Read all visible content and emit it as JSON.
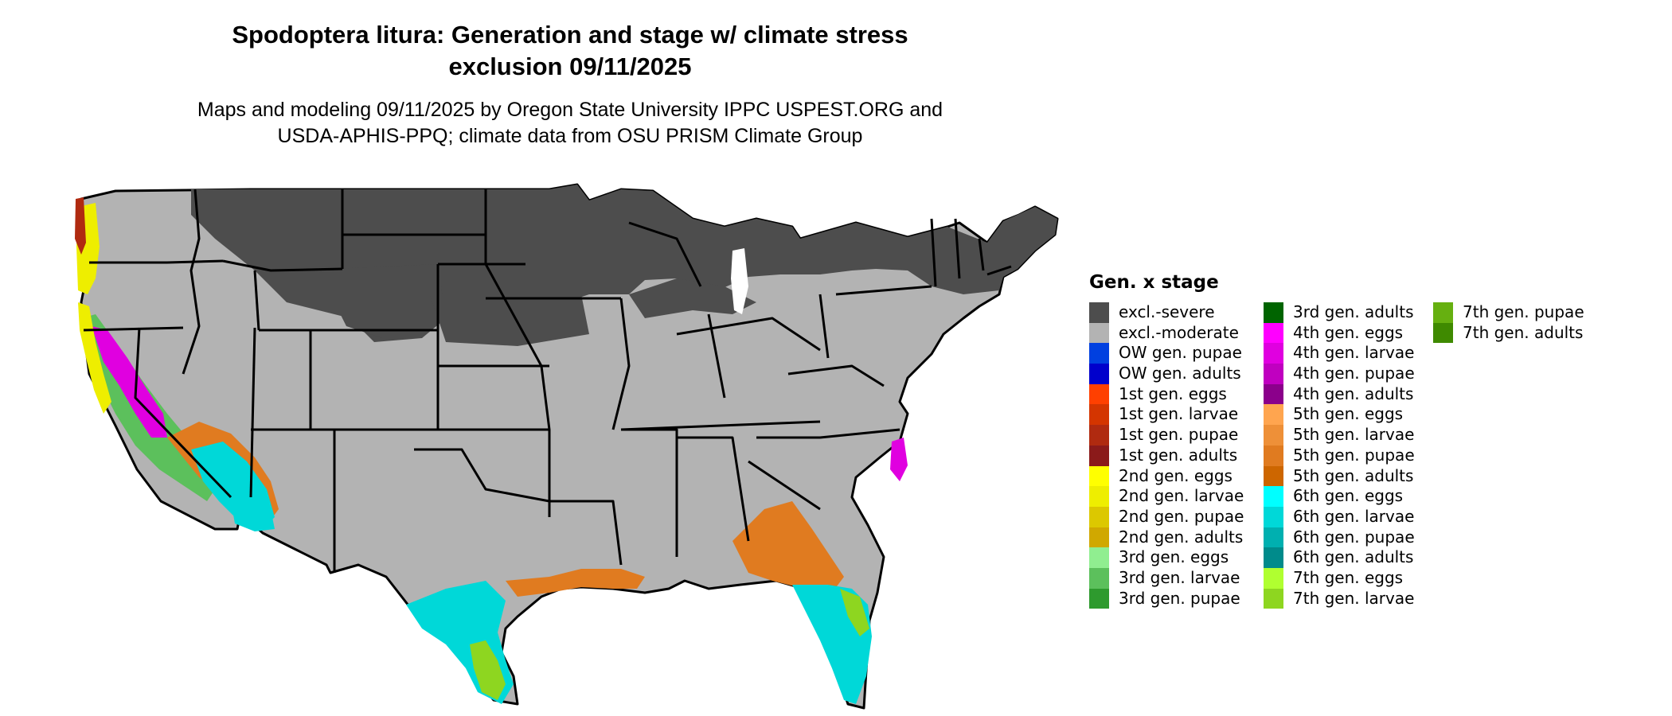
{
  "title_lines": [
    "Spodoptera litura: Generation and stage w/ climate stress",
    "exclusion 09/11/2025"
  ],
  "subtitle_lines": [
    "Maps and modeling 09/11/2025 by Oregon State University IPPC USPEST.ORG and",
    "USDA-APHIS-PPQ; climate data from OSU PRISM Climate Group"
  ],
  "legend": {
    "title": "Gen. x stage",
    "items": [
      {
        "label": "excl.-severe",
        "color": "#4d4d4d"
      },
      {
        "label": "excl.-moderate",
        "color": "#b3b3b3"
      },
      {
        "label": "OW gen. pupae",
        "color": "#0040e0"
      },
      {
        "label": "OW gen. adults",
        "color": "#0000cc"
      },
      {
        "label": "1st gen. eggs",
        "color": "#ff4000"
      },
      {
        "label": "1st gen. larvae",
        "color": "#d43500"
      },
      {
        "label": "1st gen. pupae",
        "color": "#b02a10"
      },
      {
        "label": "1st gen. adults",
        "color": "#8b1a1a"
      },
      {
        "label": "2nd gen. eggs",
        "color": "#ffff00"
      },
      {
        "label": "2nd gen. larvae",
        "color": "#eeee00"
      },
      {
        "label": "2nd gen. pupae",
        "color": "#dcc800"
      },
      {
        "label": "2nd gen. adults",
        "color": "#d0a800"
      },
      {
        "label": "3rd gen. eggs",
        "color": "#90ee90"
      },
      {
        "label": "3rd gen. larvae",
        "color": "#5cc05c"
      },
      {
        "label": "3rd gen. pupae",
        "color": "#2e9a2e"
      },
      {
        "label": "3rd gen. adults",
        "color": "#006400"
      },
      {
        "label": "4th gen. eggs",
        "color": "#ff00ff"
      },
      {
        "label": "4th gen. larvae",
        "color": "#e000e0"
      },
      {
        "label": "4th gen. pupae",
        "color": "#c000c0"
      },
      {
        "label": "4th gen. adults",
        "color": "#8b008b"
      },
      {
        "label": "5th gen. eggs",
        "color": "#ffa54f"
      },
      {
        "label": "5th gen. larvae",
        "color": "#ee9038"
      },
      {
        "label": "5th gen. pupae",
        "color": "#e07b20"
      },
      {
        "label": "5th gen. adults",
        "color": "#cd6600"
      },
      {
        "label": "6th gen. eggs",
        "color": "#00ffff"
      },
      {
        "label": "6th gen. larvae",
        "color": "#00d8d8"
      },
      {
        "label": "6th gen. pupae",
        "color": "#00b0b0"
      },
      {
        "label": "6th gen. adults",
        "color": "#008b8b"
      },
      {
        "label": "7th gen. eggs",
        "color": "#b0ff30"
      },
      {
        "label": "7th gen. larvae",
        "color": "#8ed620"
      },
      {
        "label": "7th gen. pupae",
        "color": "#66b010"
      },
      {
        "label": "7th gen. adults",
        "color": "#3f8a00"
      }
    ]
  },
  "map_colors": {
    "border": "#000000",
    "background": "#ffffff",
    "excluded_severe": "#4d4d4d",
    "excluded_moderate": "#b3b3b3",
    "generation_4": "#e000e0",
    "generation_5": "#e07b20",
    "generation_6": "#00d8d8",
    "generation_7": "#8ed620",
    "generation_2": "#eeee00",
    "generation_3": "#5cc05c",
    "generation_1": "#b02a10"
  }
}
